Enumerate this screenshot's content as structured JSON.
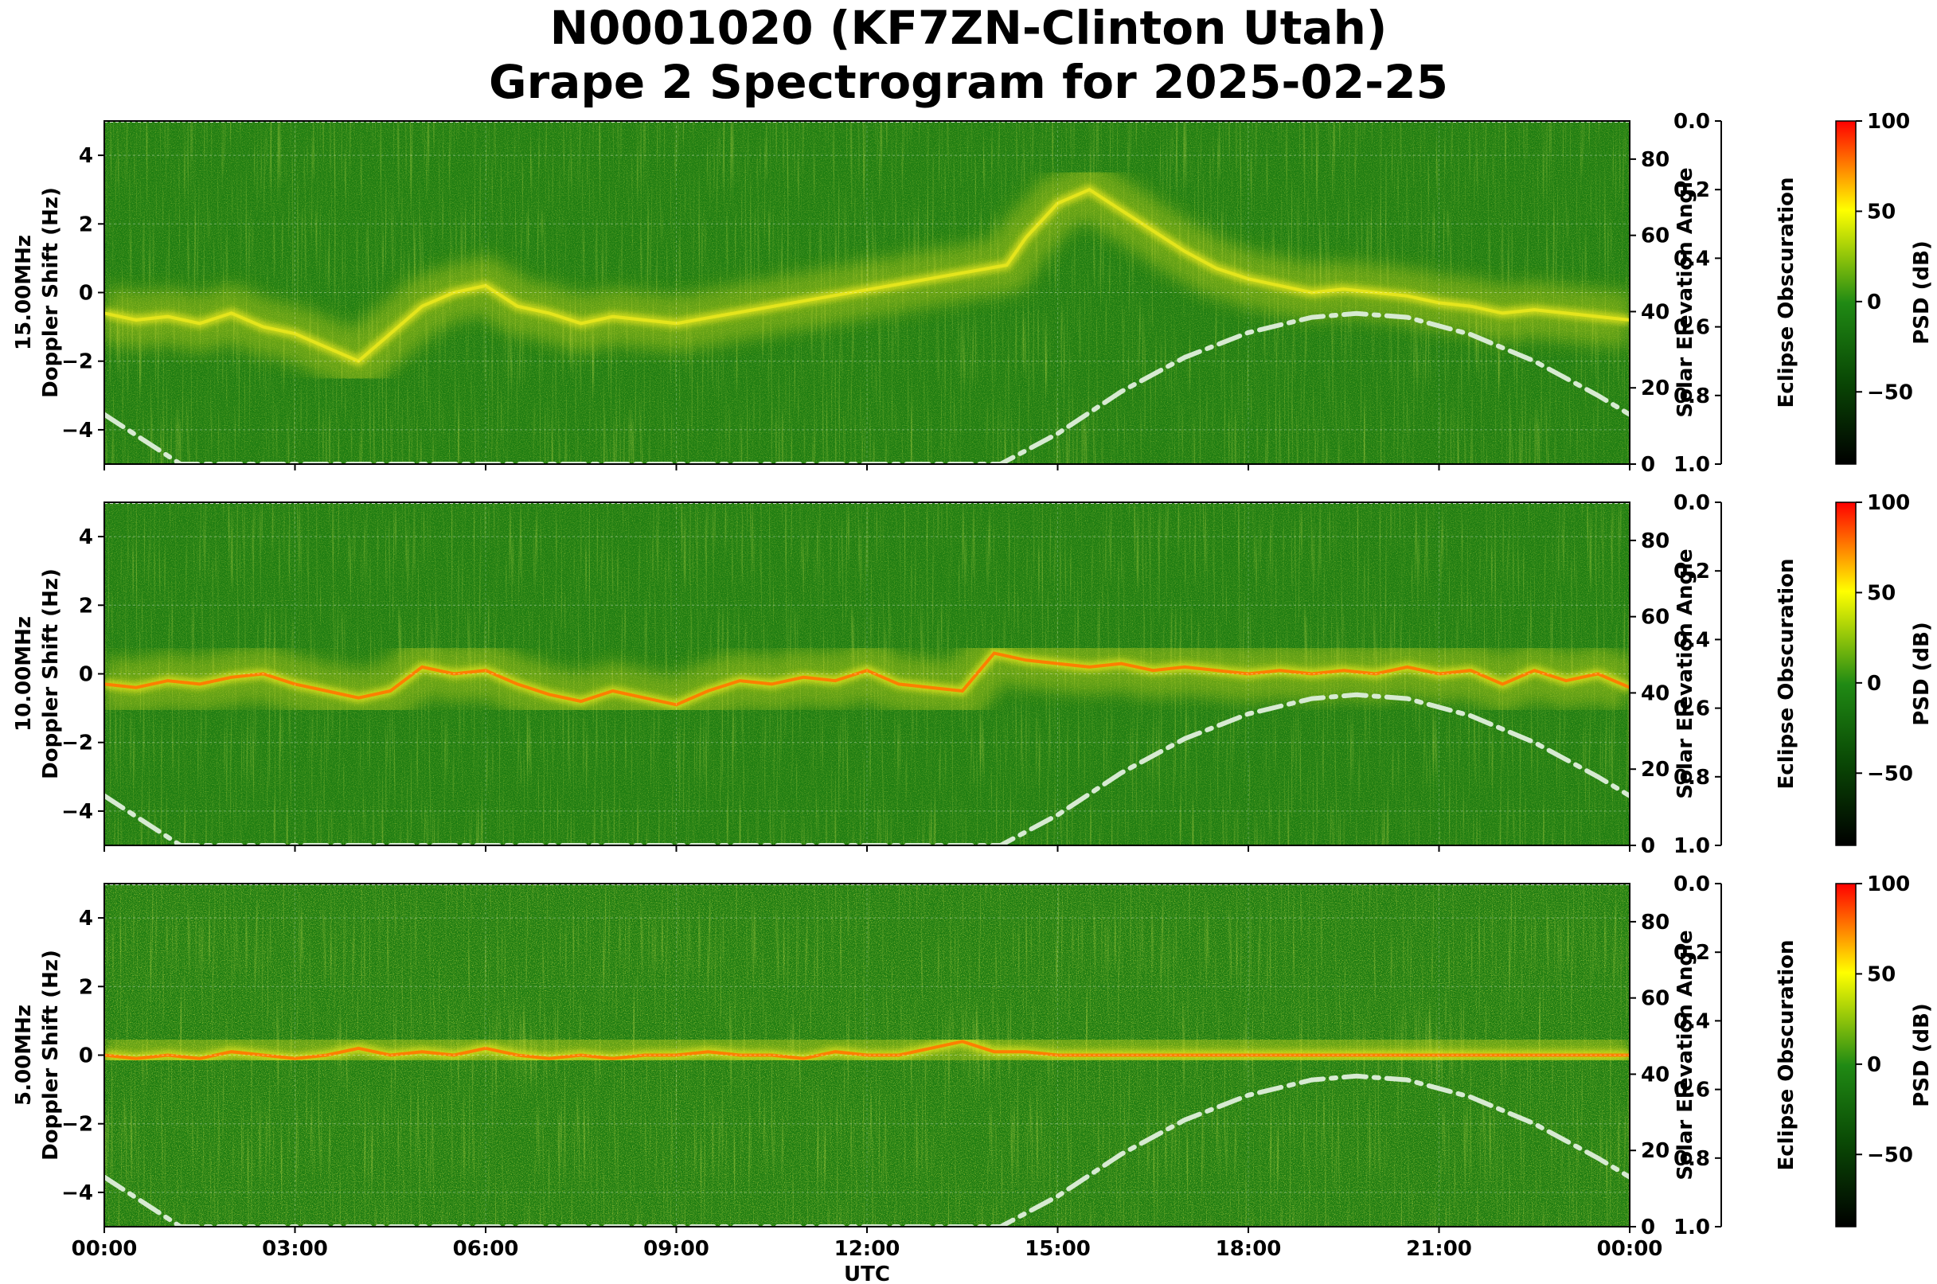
{
  "figure": {
    "title_line1": "N0001020 (KF7ZN-Clinton Utah)",
    "title_line2": "Grape 2 Spectrogram for 2025-02-25",
    "xlabel": "UTC",
    "x_ticks": [
      "00:00",
      "03:00",
      "06:00",
      "09:00",
      "12:00",
      "15:00",
      "18:00",
      "21:00",
      "00:00"
    ]
  },
  "colors": {
    "background_green": "#1f7d12",
    "deep_green": "#0c5a08",
    "signal_yellow": "#e6e61c",
    "peak_orange": "#ff7a00",
    "peak_red": "#ff1a00",
    "elevation_curve": "#d7ead2",
    "colormap": [
      "#000000",
      "#0a4a05",
      "#208a14",
      "#ffff00",
      "#ff0000"
    ]
  },
  "chart_data": [
    {
      "type": "heatmap",
      "frequency_label": "15.00MHz",
      "ylabel": "15.00MHz\nDoppler Shift (Hz)",
      "xlabel": "UTC",
      "xlim": [
        "00:00",
        "24:00"
      ],
      "ylim": [
        -5,
        5
      ],
      "y_ticks": [
        4,
        2,
        0,
        -2,
        -4
      ],
      "right_axis": {
        "label": "Solar Elevation Angle",
        "lim": [
          0,
          90
        ],
        "ticks": [
          80,
          60,
          40,
          20,
          0
        ]
      },
      "eclipse_axis": {
        "label": "Eclipse Obscuration",
        "lim": [
          0.0,
          1.0
        ],
        "ticks": [
          "0.0",
          "0.2",
          "0.4",
          "0.6",
          "0.8",
          "1.0"
        ],
        "inverted": true
      },
      "colorbar": {
        "label": "PSD (dB)",
        "lim": [
          -90,
          100
        ],
        "ticks": [
          "100",
          "50",
          "0",
          "−50"
        ]
      },
      "grid": true,
      "doppler_trace": {
        "hours": [
          0,
          0.5,
          1,
          1.5,
          2,
          2.5,
          3,
          3.5,
          4,
          4.5,
          5,
          5.5,
          6,
          6.5,
          7,
          7.5,
          8,
          8.5,
          9,
          14.2,
          14.5,
          15,
          15.5,
          16,
          16.5,
          17,
          17.5,
          18,
          18.5,
          19,
          19.5,
          20,
          20.5,
          21,
          21.5,
          22,
          22.5,
          23,
          23.5,
          24
        ],
        "doppler_hz": [
          -0.6,
          -0.8,
          -0.7,
          -0.9,
          -0.6,
          -1.0,
          -1.2,
          -1.6,
          -2.0,
          -1.2,
          -0.4,
          0.0,
          0.2,
          -0.4,
          -0.6,
          -0.9,
          -0.7,
          -0.8,
          -0.9,
          0.8,
          1.6,
          2.6,
          3.0,
          2.4,
          1.8,
          1.2,
          0.7,
          0.4,
          0.2,
          0.0,
          0.1,
          0.0,
          -0.1,
          -0.3,
          -0.4,
          -0.6,
          -0.5,
          -0.6,
          -0.7,
          -0.8
        ]
      },
      "solar_elevation_deg": {
        "hours": [
          0,
          1.2,
          14.1,
          15,
          16,
          17,
          18,
          19,
          19.7,
          20.5,
          21.5,
          22.5,
          23.5,
          24
        ],
        "values": [
          13,
          0,
          0,
          8,
          19,
          28,
          34.5,
          38.5,
          39.5,
          38.5,
          34,
          27,
          18,
          13
        ]
      }
    },
    {
      "type": "heatmap",
      "frequency_label": "10.00MHz",
      "ylabel": "10.00MHz\nDoppler Shift (Hz)",
      "xlabel": "UTC",
      "xlim": [
        "00:00",
        "24:00"
      ],
      "ylim": [
        -5,
        5
      ],
      "y_ticks": [
        4,
        2,
        0,
        -2,
        -4
      ],
      "right_axis": {
        "label": "Solar Elevation Angle",
        "lim": [
          0,
          90
        ],
        "ticks": [
          80,
          60,
          40,
          20,
          0
        ]
      },
      "eclipse_axis": {
        "label": "Eclipse Obscuration",
        "lim": [
          0.0,
          1.0
        ],
        "ticks": [
          "0.0",
          "0.2",
          "0.4",
          "0.6",
          "0.8",
          "1.0"
        ],
        "inverted": true
      },
      "colorbar": {
        "label": "PSD (dB)",
        "lim": [
          -90,
          100
        ],
        "ticks": [
          "100",
          "50",
          "0",
          "−50"
        ]
      },
      "grid": true,
      "doppler_trace": {
        "hours": [
          0,
          0.5,
          1,
          1.5,
          2,
          2.5,
          3,
          3.5,
          4,
          4.5,
          5,
          5.5,
          6,
          6.5,
          7,
          7.5,
          8,
          8.5,
          9,
          9.5,
          10,
          10.5,
          11,
          11.5,
          12,
          12.5,
          13,
          13.5,
          14,
          14.5,
          15,
          15.5,
          16,
          16.5,
          17,
          17.5,
          18,
          18.5,
          19,
          19.5,
          20,
          20.5,
          21,
          21.5,
          22,
          22.5,
          23,
          23.5,
          24
        ],
        "doppler_hz": [
          -0.3,
          -0.4,
          -0.2,
          -0.3,
          -0.1,
          0.0,
          -0.3,
          -0.5,
          -0.7,
          -0.5,
          0.2,
          0.0,
          0.1,
          -0.3,
          -0.6,
          -0.8,
          -0.5,
          -0.7,
          -0.9,
          -0.5,
          -0.2,
          -0.3,
          -0.1,
          -0.2,
          0.1,
          -0.3,
          -0.4,
          -0.5,
          0.6,
          0.4,
          0.3,
          0.2,
          0.3,
          0.1,
          0.2,
          0.1,
          0.0,
          0.1,
          0.0,
          0.1,
          0.0,
          0.2,
          0.0,
          0.1,
          -0.3,
          0.1,
          -0.2,
          0.0,
          -0.4
        ]
      },
      "solar_elevation_deg": {
        "hours": [
          0,
          1.2,
          14.1,
          15,
          16,
          17,
          18,
          19,
          19.7,
          20.5,
          21.5,
          22.5,
          23.5,
          24
        ],
        "values": [
          13,
          0,
          0,
          8,
          19,
          28,
          34.5,
          38.5,
          39.5,
          38.5,
          34,
          27,
          18,
          13
        ]
      }
    },
    {
      "type": "heatmap",
      "frequency_label": "5.00MHz",
      "ylabel": "5.00MHz\nDoppler Shift (Hz)",
      "xlabel": "UTC",
      "xlim": [
        "00:00",
        "24:00"
      ],
      "ylim": [
        -5,
        5
      ],
      "y_ticks": [
        4,
        2,
        0,
        -2,
        -4
      ],
      "right_axis": {
        "label": "Solar Elevation Angle",
        "lim": [
          0,
          90
        ],
        "ticks": [
          80,
          60,
          40,
          20,
          0
        ]
      },
      "eclipse_axis": {
        "label": "Eclipse Obscuration",
        "lim": [
          0.0,
          1.0
        ],
        "ticks": [
          "0.0",
          "0.2",
          "0.4",
          "0.6",
          "0.8",
          "1.0"
        ],
        "inverted": true
      },
      "colorbar": {
        "label": "PSD (dB)",
        "lim": [
          -90,
          100
        ],
        "ticks": [
          "100",
          "50",
          "0",
          "−50"
        ]
      },
      "grid": true,
      "doppler_trace": {
        "hours": [
          0,
          0.5,
          1,
          1.5,
          2,
          2.5,
          3,
          3.5,
          4,
          4.5,
          5,
          5.5,
          6,
          6.5,
          7,
          7.5,
          8,
          8.5,
          9,
          9.5,
          10,
          10.5,
          11,
          11.5,
          12,
          12.5,
          13,
          13.5,
          14,
          14.5,
          15,
          15.5,
          16,
          17,
          18,
          19,
          20,
          21,
          22,
          23,
          24
        ],
        "doppler_hz": [
          0.0,
          -0.1,
          0.0,
          -0.1,
          0.1,
          0.0,
          -0.1,
          0.0,
          0.2,
          0.0,
          0.1,
          0.0,
          0.2,
          0.0,
          -0.1,
          0.0,
          -0.1,
          0.0,
          0.0,
          0.1,
          0.0,
          0.0,
          -0.1,
          0.1,
          0.0,
          0.0,
          0.2,
          0.4,
          0.1,
          0.1,
          0.0,
          0.0,
          0.0,
          0.0,
          0.0,
          0.0,
          0.0,
          0.0,
          0.0,
          0.0,
          0.0
        ]
      },
      "solar_elevation_deg": {
        "hours": [
          0,
          1.2,
          14.1,
          15,
          16,
          17,
          18,
          19,
          19.7,
          20.5,
          21.5,
          22.5,
          23.5,
          24
        ],
        "values": [
          13,
          0,
          0,
          8,
          19,
          28,
          34.5,
          38.5,
          39.5,
          38.5,
          34,
          27,
          18,
          13
        ]
      }
    }
  ]
}
